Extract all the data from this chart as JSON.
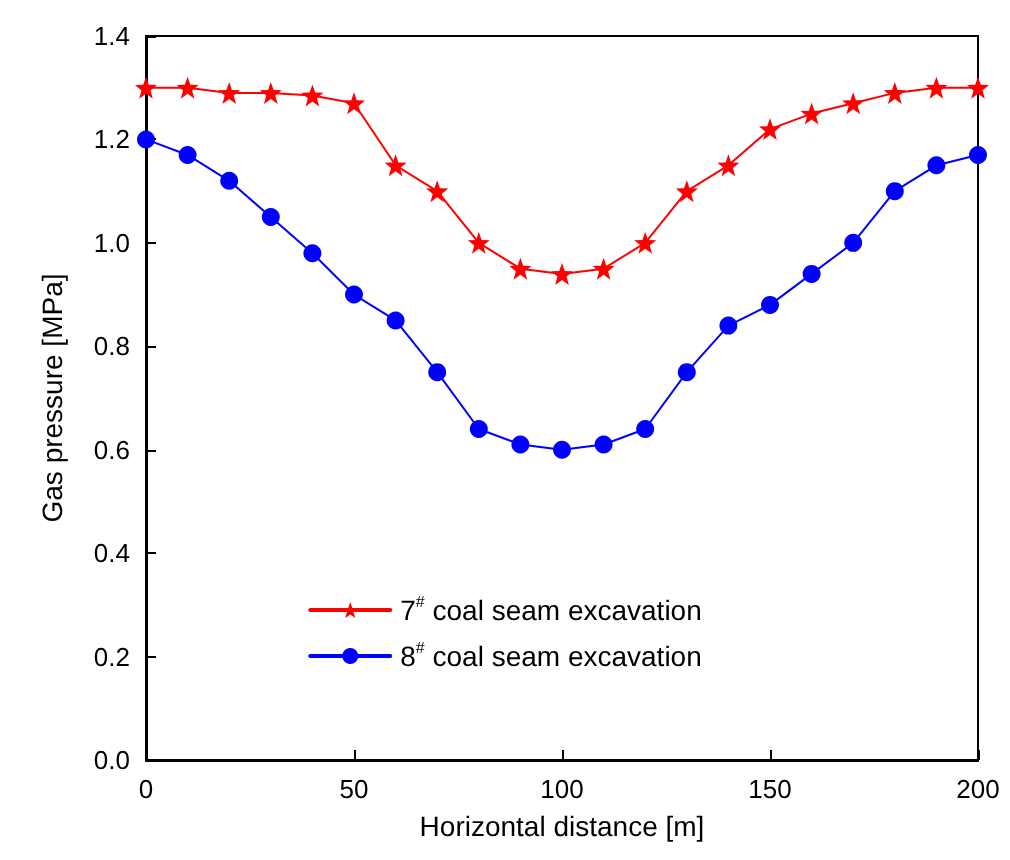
{
  "chart_data": {
    "type": "line",
    "xlabel": "Horizontal distance [m]",
    "ylabel": "Gas pressure [MPa]",
    "x": [
      0,
      10,
      20,
      30,
      40,
      50,
      60,
      70,
      80,
      90,
      100,
      110,
      120,
      130,
      140,
      150,
      160,
      170,
      180,
      190,
      200
    ],
    "series": [
      {
        "name": "7$^{#}$ coal seam excavation",
        "color": "#ff0000",
        "marker": "star",
        "values": [
          1.3,
          1.3,
          1.29,
          1.29,
          1.285,
          1.27,
          1.15,
          1.1,
          1.0,
          0.95,
          0.94,
          0.95,
          1.0,
          1.1,
          1.15,
          1.22,
          1.25,
          1.27,
          1.29,
          1.3,
          1.3
        ]
      },
      {
        "name": "8$^{#}$ coal seam excavation",
        "color": "#0000ff",
        "marker": "circle",
        "values": [
          1.2,
          1.17,
          1.12,
          1.05,
          0.98,
          0.9,
          0.85,
          0.75,
          0.64,
          0.61,
          0.6,
          0.61,
          0.64,
          0.75,
          0.84,
          0.88,
          0.94,
          1.0,
          1.1,
          1.15,
          1.17
        ]
      }
    ],
    "xlim": [
      0,
      200
    ],
    "xticks": [
      0,
      50,
      100,
      150,
      200
    ],
    "ylim": [
      0,
      1.4
    ],
    "yticks": [
      {
        "value": 0,
        "label": "0.0"
      },
      {
        "value": 0.2,
        "label": "0.2"
      },
      {
        "value": 0.4,
        "label": "0.4"
      },
      {
        "value": 0.6,
        "label": "0.6"
      },
      {
        "value": 0.8,
        "label": "0.8"
      },
      {
        "value": 1.0,
        "label": "1.0"
      },
      {
        "value": 1.2,
        "label": "1.2"
      },
      {
        "value": 1.4,
        "label": "1.4"
      }
    ],
    "grid": false,
    "legend": "bottom"
  }
}
